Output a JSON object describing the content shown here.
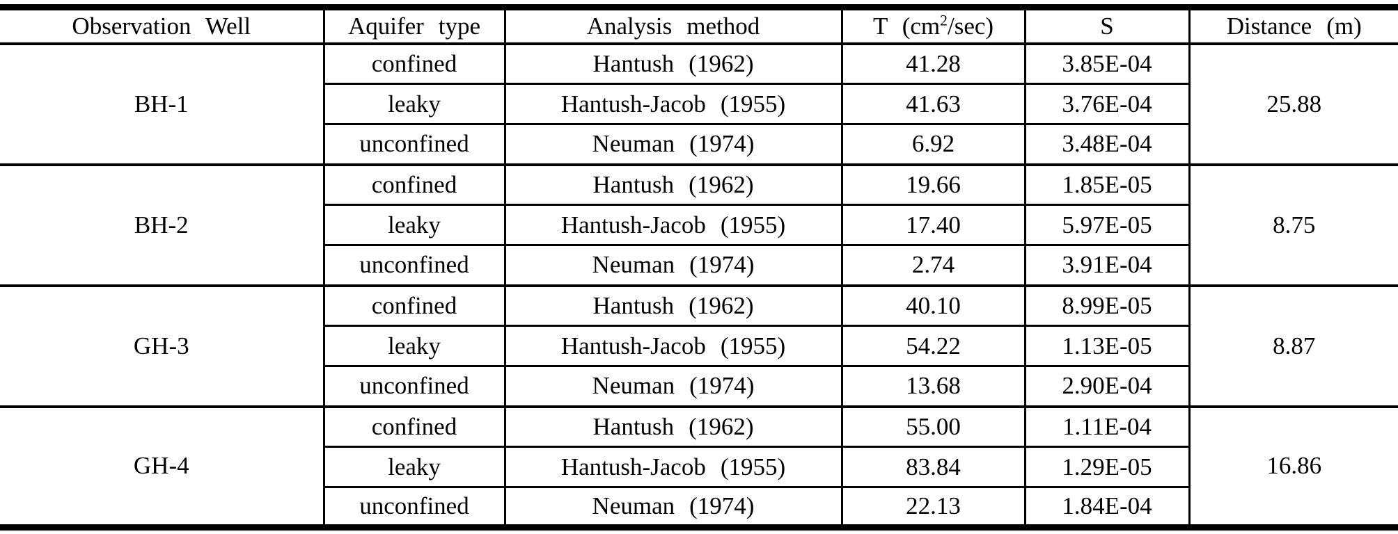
{
  "header": {
    "observation_well": "Observation Well",
    "aquifer_type": "Aquifer type",
    "analysis_method": "Analysis method",
    "t_label_prefix": "T (cm",
    "t_label_exponent": "2",
    "t_label_suffix": "/sec)",
    "s_label": "S",
    "distance_label": "Distance (m)"
  },
  "groups": [
    {
      "well": "BH-1",
      "distance": "25.88",
      "rows": [
        {
          "aquifer": "confined",
          "method": "Hantush (1962)",
          "t": "41.28",
          "s": "3.85E-04"
        },
        {
          "aquifer": "leaky",
          "method": "Hantush-Jacob (1955)",
          "t": "41.63",
          "s": "3.76E-04"
        },
        {
          "aquifer": "unconfined",
          "method": "Neuman (1974)",
          "t": "6.92",
          "s": "3.48E-04"
        }
      ]
    },
    {
      "well": "BH-2",
      "distance": "8.75",
      "rows": [
        {
          "aquifer": "confined",
          "method": "Hantush (1962)",
          "t": "19.66",
          "s": "1.85E-05"
        },
        {
          "aquifer": "leaky",
          "method": "Hantush-Jacob (1955)",
          "t": "17.40",
          "s": "5.97E-05"
        },
        {
          "aquifer": "unconfined",
          "method": "Neuman (1974)",
          "t": "2.74",
          "s": "3.91E-04"
        }
      ]
    },
    {
      "well": "GH-3",
      "distance": "8.87",
      "rows": [
        {
          "aquifer": "confined",
          "method": "Hantush (1962)",
          "t": "40.10",
          "s": "8.99E-05"
        },
        {
          "aquifer": "leaky",
          "method": "Hantush-Jacob (1955)",
          "t": "54.22",
          "s": "1.13E-05"
        },
        {
          "aquifer": "unconfined",
          "method": "Neuman (1974)",
          "t": "13.68",
          "s": "2.90E-04"
        }
      ]
    },
    {
      "well": "GH-4",
      "distance": "16.86",
      "rows": [
        {
          "aquifer": "confined",
          "method": "Hantush (1962)",
          "t": "55.00",
          "s": "1.11E-04"
        },
        {
          "aquifer": "leaky",
          "method": "Hantush-Jacob (1955)",
          "t": "83.84",
          "s": "1.29E-05"
        },
        {
          "aquifer": "unconfined",
          "method": "Neuman (1974)",
          "t": "22.13",
          "s": "1.84E-04"
        }
      ]
    }
  ]
}
